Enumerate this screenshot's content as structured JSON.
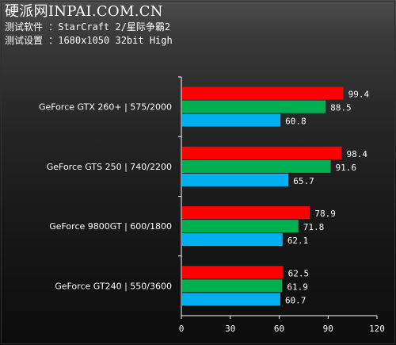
{
  "header": {
    "site": "硬派网INPAI.COM.CN",
    "software_line": "测试软件 ：StarCraft 2/星际争霸2",
    "settings_line": "测试设置 ：1680x1050 32bit High"
  },
  "colors": {
    "series1": "#ff0000",
    "series2": "#00b050",
    "series3": "#00b0f0"
  },
  "chart_data": {
    "type": "bar",
    "orientation": "horizontal",
    "categories": [
      "GeForce GTX 260+ | 575/2000",
      "GeForce GTS 250 | 740/2200",
      "GeForce 9800GT | 600/1800",
      "GeForce GT240 | 550/3600"
    ],
    "series": [
      {
        "values": [
          99.4,
          98.4,
          78.9,
          62.5
        ]
      },
      {
        "values": [
          88.5,
          91.6,
          71.8,
          61.9
        ]
      },
      {
        "values": [
          60.8,
          65.7,
          62.1,
          60.7
        ]
      }
    ],
    "xlim": [
      0,
      120
    ],
    "xticks": [
      0,
      30,
      60,
      90,
      120
    ],
    "grid": false,
    "legend": "none"
  }
}
